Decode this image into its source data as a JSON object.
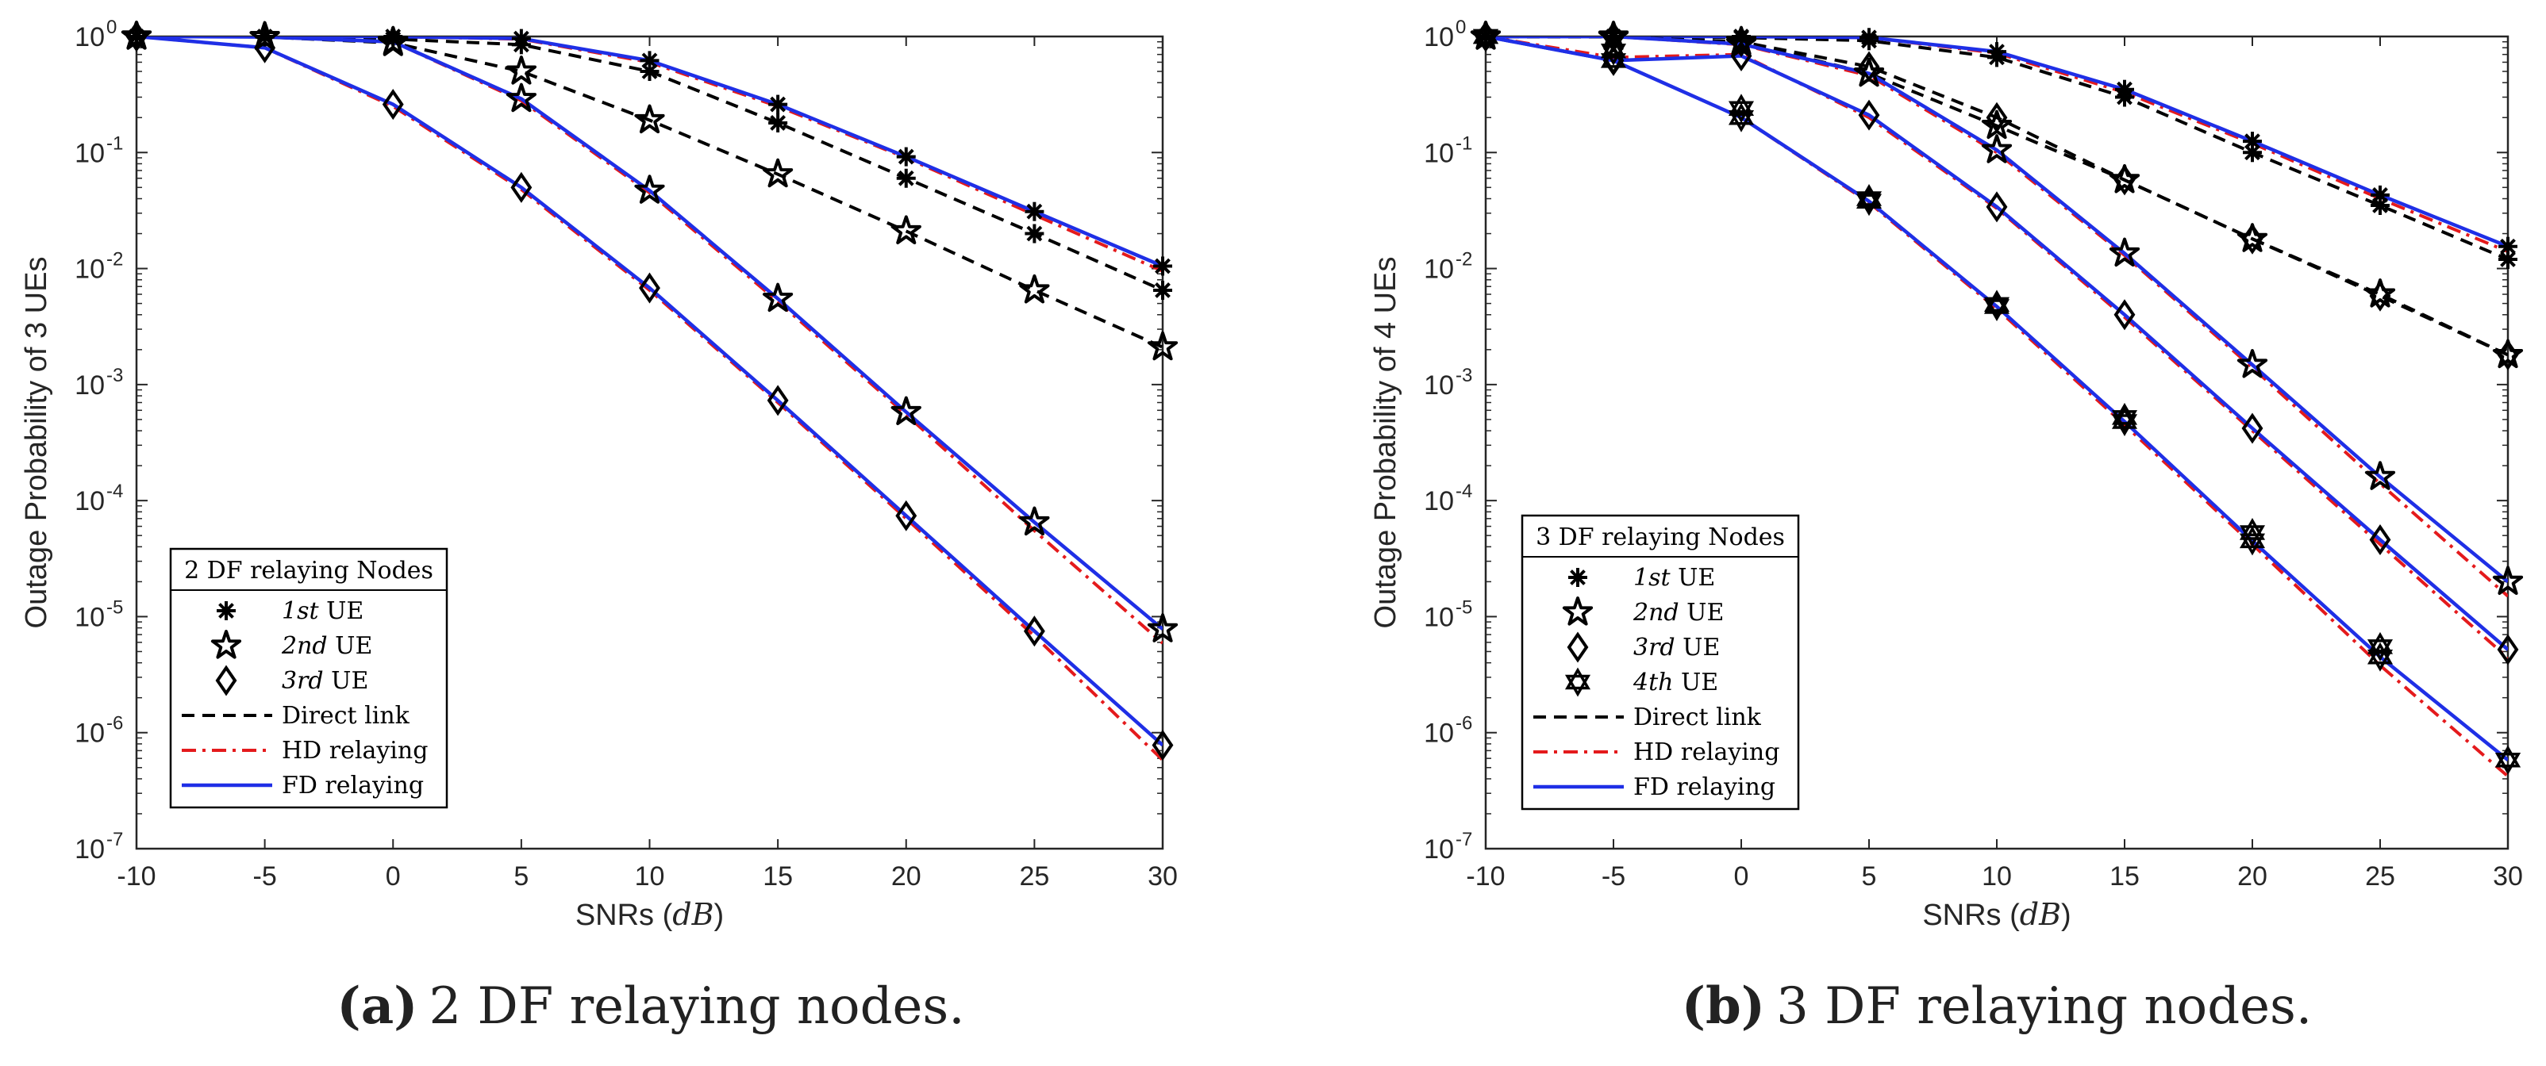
{
  "chart_data": [
    {
      "type": "line",
      "panel_label": "(a)",
      "caption": "2 DF relaying nodes.",
      "x": [
        -10,
        -5,
        0,
        5,
        10,
        15,
        20,
        25,
        30
      ],
      "xlabel_main": "SNRs (",
      "xlabel_unit": "dB",
      "xlabel_close": ")",
      "ylabel": "Outage Probability of 3 UEs",
      "xlim": [
        -10,
        30
      ],
      "ylim_log10": [
        -7,
        0
      ],
      "y_scale": "log",
      "xtick_labels": [
        "-10",
        "-5",
        "0",
        "5",
        "10",
        "15",
        "20",
        "25",
        "30"
      ],
      "ytick_exponents": [
        "0",
        "-1",
        "-2",
        "-3",
        "-4",
        "-5",
        "-6",
        "-7"
      ],
      "ytick_base": "10",
      "legend": {
        "title": "2 DF relaying Nodes",
        "placement": "lower-left",
        "markers": [
          {
            "marker": "asterisk",
            "ordinal": "1st",
            "suffix": " UE"
          },
          {
            "marker": "star5",
            "ordinal": "2nd",
            "suffix": " UE"
          },
          {
            "marker": "diamond",
            "ordinal": "3rd",
            "suffix": " UE"
          }
        ],
        "lines": [
          {
            "style": "direct",
            "label": "Direct link"
          },
          {
            "style": "hd",
            "label": "HD relaying"
          },
          {
            "style": "fd",
            "label": "FD relaying"
          }
        ]
      },
      "series": [
        {
          "name": "1st UE Direct link",
          "style": "direct",
          "marker": "asterisk",
          "values": [
            1.0,
            0.99,
            0.95,
            0.85,
            0.5,
            0.18,
            0.06,
            0.02,
            0.0065
          ]
        },
        {
          "name": "1st UE HD relaying",
          "style": "hd",
          "marker": "asterisk",
          "values": [
            1.0,
            1.0,
            1.0,
            0.95,
            0.6,
            0.25,
            0.09,
            0.029,
            0.0095
          ]
        },
        {
          "name": "1st UE FD relaying",
          "style": "fd",
          "marker": "asterisk",
          "values": [
            1.0,
            1.0,
            1.0,
            0.96,
            0.62,
            0.26,
            0.092,
            0.031,
            0.0105
          ]
        },
        {
          "name": "2nd UE Direct link",
          "style": "direct",
          "marker": "star5",
          "values": [
            1.0,
            0.99,
            0.88,
            0.5,
            0.19,
            0.065,
            0.021,
            0.0065,
            0.0021
          ]
        },
        {
          "name": "2nd UE HD relaying",
          "style": "hd",
          "marker": "star5",
          "values": [
            1.0,
            0.99,
            0.9,
            0.28,
            0.045,
            0.0052,
            0.00055,
            5.5e-05,
            5.9e-06
          ]
        },
        {
          "name": "2nd UE FD relaying",
          "style": "fd",
          "marker": "star5",
          "values": [
            1.0,
            0.99,
            0.9,
            0.29,
            0.047,
            0.0055,
            0.00058,
            6.5e-05,
            7.8e-06
          ]
        },
        {
          "name": "3rd UE HD relaying",
          "style": "hd",
          "marker": "diamond",
          "values": [
            1.0,
            0.8,
            0.25,
            0.048,
            0.0065,
            0.0007,
            7e-05,
            6.8e-06,
            5.8e-07
          ]
        },
        {
          "name": "3rd UE FD relaying",
          "style": "fd",
          "marker": "diamond",
          "values": [
            1.0,
            0.8,
            0.26,
            0.05,
            0.0068,
            0.00073,
            7.4e-05,
            7.5e-06,
            7.8e-07
          ]
        }
      ]
    },
    {
      "type": "line",
      "panel_label": "(b)",
      "caption": "3 DF relaying nodes.",
      "x": [
        -10,
        -5,
        0,
        5,
        10,
        15,
        20,
        25,
        30
      ],
      "xlabel_main": "SNRs (",
      "xlabel_unit": "dB",
      "xlabel_close": ")",
      "ylabel": "Outage Probability of 4 UEs",
      "xlim": [
        -10,
        30
      ],
      "ylim_log10": [
        -7,
        0
      ],
      "y_scale": "log",
      "xtick_labels": [
        "-10",
        "-5",
        "0",
        "5",
        "10",
        "15",
        "20",
        "25",
        "30"
      ],
      "ytick_exponents": [
        "0",
        "-1",
        "-2",
        "-3",
        "-4",
        "-5",
        "-6",
        "-7"
      ],
      "ytick_base": "10",
      "legend": {
        "title": "3 DF relaying Nodes",
        "placement": "lower-left",
        "markers": [
          {
            "marker": "asterisk",
            "ordinal": "1st",
            "suffix": " UE"
          },
          {
            "marker": "star5",
            "ordinal": "2nd",
            "suffix": " UE"
          },
          {
            "marker": "diamond",
            "ordinal": "3rd",
            "suffix": " UE"
          },
          {
            "marker": "hexagram",
            "ordinal": "4th",
            "suffix": " UE"
          }
        ],
        "lines": [
          {
            "style": "direct",
            "label": "Direct link"
          },
          {
            "style": "hd",
            "label": "HD relaying"
          },
          {
            "style": "fd",
            "label": "FD relaying"
          }
        ]
      },
      "series": [
        {
          "name": "1st UE Direct link",
          "style": "direct",
          "marker": "asterisk",
          "values": [
            1.0,
            1.0,
            0.98,
            0.92,
            0.66,
            0.3,
            0.1,
            0.035,
            0.012
          ]
        },
        {
          "name": "1st UE HD relaying",
          "style": "hd",
          "marker": "asterisk",
          "values": [
            1.0,
            1.0,
            1.0,
            0.98,
            0.72,
            0.33,
            0.12,
            0.04,
            0.014
          ]
        },
        {
          "name": "1st UE FD relaying",
          "style": "fd",
          "marker": "asterisk",
          "values": [
            1.0,
            1.0,
            1.0,
            0.98,
            0.74,
            0.35,
            0.125,
            0.043,
            0.0155
          ]
        },
        {
          "name": "2nd UE Direct link",
          "style": "direct",
          "marker": "diamond",
          "values": [
            1.0,
            0.99,
            0.9,
            0.55,
            0.2,
            0.058,
            0.018,
            0.0058,
            0.0018
          ]
        },
        {
          "name": "3rd UE Direct link",
          "style": "direct",
          "marker": "star5",
          "values": [
            1.0,
            0.99,
            0.9,
            0.48,
            0.17,
            0.058,
            0.018,
            0.006,
            0.0018
          ]
        },
        {
          "name": "2nd UE HD relaying",
          "style": "hd",
          "marker": "star5",
          "values": [
            1.0,
            1.0,
            0.85,
            0.46,
            0.1,
            0.013,
            0.0014,
            0.00014,
            1.5e-05
          ]
        },
        {
          "name": "2nd UE FD relaying",
          "style": "fd",
          "marker": "star5",
          "values": [
            1.0,
            1.0,
            0.86,
            0.48,
            0.105,
            0.0135,
            0.00148,
            0.00016,
            2e-05
          ]
        },
        {
          "name": "3rd UE HD relaying",
          "style": "hd",
          "marker": "diamond",
          "values": [
            1.0,
            0.66,
            0.7,
            0.2,
            0.033,
            0.0038,
            0.0004,
            4.2e-05,
            4.4e-06
          ]
        },
        {
          "name": "3rd UE FD relaying",
          "style": "fd",
          "marker": "diamond",
          "values": [
            1.0,
            0.62,
            0.68,
            0.21,
            0.034,
            0.004,
            0.00042,
            4.6e-05,
            5.2e-06
          ]
        },
        {
          "name": "4th UE HD relaying",
          "style": "hd",
          "marker": "hexagram",
          "values": [
            1.0,
            0.62,
            0.2,
            0.037,
            0.0045,
            0.00045,
            4.2e-05,
            3.8e-06,
            4.2e-07
          ]
        },
        {
          "name": "4th UE FD relaying",
          "style": "fd",
          "marker": "hexagram",
          "values": [
            1.0,
            0.62,
            0.2,
            0.038,
            0.0047,
            0.00048,
            4.5e-05,
            4.5e-06,
            5.8e-07
          ]
        }
      ],
      "markers_only": [
        {
          "name": "4th UE marker",
          "marker": "hexagram",
          "values": [
            1.0,
            0.75,
            0.24,
            0.04,
            0.0049,
            0.00052,
            5.3e-05,
            5.5e-06,
            5.8e-07
          ]
        }
      ]
    }
  ],
  "colors": {
    "direct": "#000000",
    "hd": "#e41a1c",
    "fd": "#1f2fe6",
    "axis": "#262626"
  }
}
